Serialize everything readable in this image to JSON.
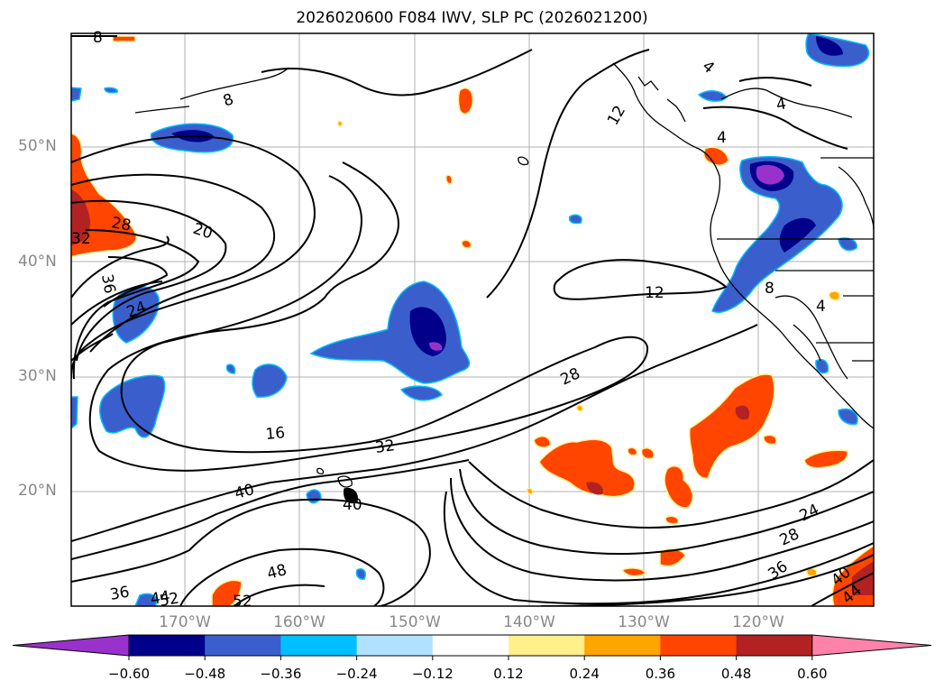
{
  "title": "2026020600 F084 IWV, SLP PC (2026021200)",
  "lat_labels": [
    "50°N",
    "40°N",
    "30°N",
    "20°N"
  ],
  "lon_labels": [
    "170°W",
    "160°W",
    "150°W",
    "140°W",
    "130°W",
    "120°W"
  ],
  "contour_labels": [
    "8",
    "20",
    "28",
    "32",
    "36",
    "24",
    "16",
    "32",
    "40",
    "40",
    "48",
    "36",
    "44",
    "52",
    "52",
    "12",
    "28",
    "24",
    "28",
    "36",
    "40",
    "44",
    "8",
    "4",
    "4",
    "12",
    "4",
    "8",
    "4"
  ],
  "colorbar": {
    "ticks": [
      "−0.60",
      "−0.48",
      "−0.36",
      "−0.24",
      "−0.12",
      "0.12",
      "0.24",
      "0.36",
      "0.48",
      "0.60"
    ],
    "colors": [
      "#9932cc",
      "#00008b",
      "#3a5fcd",
      "#00bfff",
      "#b0e2ff",
      "#ffffff",
      "#fff08c",
      "#ffa500",
      "#ff4500",
      "#b22222",
      "#ff82ab"
    ]
  }
}
